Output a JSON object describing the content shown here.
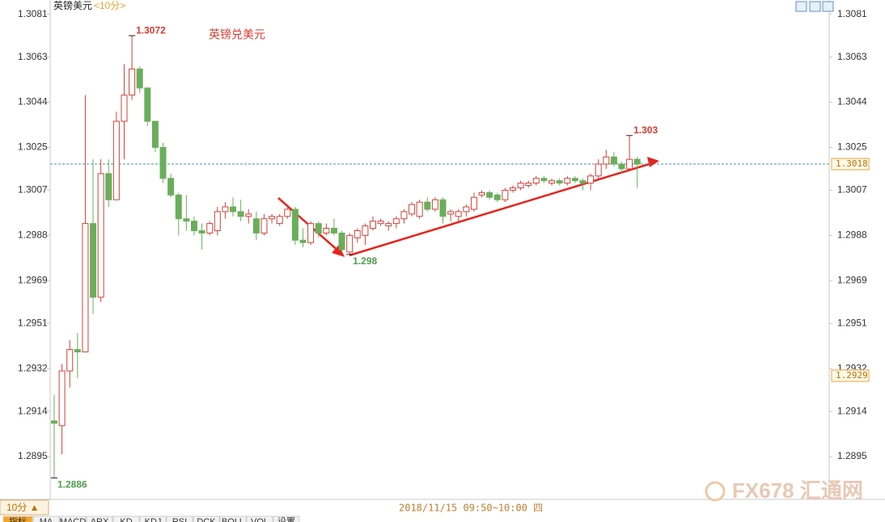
{
  "chart_data": {
    "type": "candlestick",
    "title": "英镑美元",
    "period": "<10分>",
    "annotation": "英镑兑美元",
    "time_label": "2018/11/15 09:50~10:00 四",
    "period_tab": "10分 ▲",
    "tabs": [
      "指标",
      "MA",
      "MACD",
      "ARX",
      "KD",
      "KDJ",
      "RSI",
      "DCK",
      "BOLL",
      "VOL",
      "设置"
    ],
    "watermark": "FX678 汇通网",
    "ylim": [
      1.2877,
      1.3087
    ],
    "yticks": [
      1.3081,
      1.3063,
      1.3044,
      1.3025,
      1.3007,
      1.2988,
      1.2969,
      1.2951,
      1.2932,
      1.2914,
      1.2895
    ],
    "last_price": 1.3018,
    "ref_price": 1.2929,
    "high_labels": [
      1.3072,
      1.303
    ],
    "low_labels": [
      1.298,
      1.2886
    ],
    "up_color": "#d0423a",
    "down_color": "#6aae5c",
    "open": [
      1.291,
      1.2908,
      1.2931,
      1.294,
      1.2939,
      1.2993,
      1.2962,
      1.3014,
      1.3003,
      1.3036,
      1.3047,
      1.3058,
      1.305,
      1.3036,
      1.3025,
      1.3012,
      1.3005,
      1.2995,
      1.2994,
      1.299,
      1.2989,
      1.299,
      1.2998,
      1.3,
      1.2998,
      1.2996,
      1.2995,
      1.2989,
      1.2995,
      1.2993,
      1.2996,
      1.2999,
      1.2986,
      1.2985,
      1.2993,
      1.2989,
      1.2991,
      1.2989,
      1.2981,
      1.2987,
      1.2988,
      1.2991,
      1.2993,
      1.2992,
      1.2993,
      1.2995,
      1.2997,
      1.2996,
      1.3002,
      1.2999,
      1.3003,
      1.2997,
      1.2996,
      1.2998,
      1.2999,
      1.3005,
      1.3006,
      1.3005,
      1.3003,
      1.3007,
      1.3008,
      1.3009,
      1.301,
      1.3012,
      1.301,
      1.3011,
      1.301,
      1.3012,
      1.3011,
      1.301,
      1.3013,
      1.3018,
      1.3021,
      1.3018,
      1.3016,
      1.302
    ],
    "high": [
      1.2921,
      1.2934,
      1.2944,
      1.2947,
      1.3047,
      1.302,
      1.302,
      1.302,
      1.304,
      1.306,
      1.3072,
      1.3059,
      1.305,
      1.3036,
      1.3027,
      1.3014,
      1.3006,
      1.3005,
      1.2996,
      1.2993,
      1.2994,
      1.3,
      1.3002,
      1.3004,
      1.3003,
      1.2999,
      1.2998,
      1.2997,
      1.2997,
      1.2997,
      1.3001,
      1.3,
      1.2991,
      1.2994,
      1.2994,
      1.2993,
      1.2995,
      1.299,
      1.2989,
      1.2991,
      1.2993,
      1.2996,
      1.2995,
      1.2994,
      1.2996,
      1.2999,
      1.3002,
      1.3003,
      1.3004,
      1.3004,
      1.3004,
      1.2999,
      1.2999,
      1.3001,
      1.3006,
      1.3007,
      1.3007,
      1.3006,
      1.3008,
      1.3009,
      1.3011,
      1.3011,
      1.3013,
      1.3013,
      1.3012,
      1.3012,
      1.3013,
      1.3013,
      1.3012,
      1.3014,
      1.302,
      1.3024,
      1.3023,
      1.3019,
      1.303,
      1.3021
    ],
    "low": [
      1.2886,
      1.2896,
      1.2924,
      1.2928,
      1.2939,
      1.2955,
      1.296,
      1.3,
      1.3003,
      1.302,
      1.3045,
      1.3048,
      1.3034,
      1.3023,
      1.301,
      1.3004,
      1.2988,
      1.299,
      1.2988,
      1.2982,
      1.2988,
      1.2988,
      1.2995,
      1.2996,
      1.2994,
      1.2993,
      1.2986,
      1.2988,
      1.2993,
      1.2992,
      1.2995,
      1.2984,
      1.2983,
      1.2984,
      1.2987,
      1.2988,
      1.2988,
      1.2981,
      1.298,
      1.2985,
      1.2984,
      1.299,
      1.2992,
      1.299,
      1.2991,
      1.2993,
      1.2996,
      1.2995,
      1.2998,
      1.2998,
      1.2993,
      1.2994,
      1.2994,
      1.2996,
      1.2998,
      1.3004,
      1.3003,
      1.3002,
      1.3002,
      1.3006,
      1.3007,
      1.3008,
      1.3009,
      1.301,
      1.3009,
      1.3009,
      1.3009,
      1.301,
      1.3007,
      1.3007,
      1.3011,
      1.3016,
      1.3017,
      1.3014,
      1.3015,
      1.3008
    ],
    "close": [
      1.2909,
      1.2931,
      1.294,
      1.2939,
      1.2993,
      1.2962,
      1.3014,
      1.3003,
      1.3036,
      1.3047,
      1.3058,
      1.305,
      1.3036,
      1.3025,
      1.3012,
      1.3005,
      1.2995,
      1.2994,
      1.299,
      1.2989,
      1.2993,
      1.2998,
      1.3,
      1.2998,
      1.2996,
      1.2997,
      1.2989,
      1.2995,
      1.2996,
      1.2996,
      1.2999,
      1.2986,
      1.2985,
      1.2993,
      1.2989,
      1.2991,
      1.2989,
      1.2982,
      1.2988,
      1.299,
      1.2992,
      1.2994,
      1.2994,
      1.2993,
      1.2995,
      1.2998,
      1.3001,
      1.3002,
      1.2999,
      1.3003,
      1.2996,
      1.2998,
      1.2998,
      1.3,
      1.3004,
      1.3006,
      1.3004,
      1.3003,
      1.3007,
      1.3008,
      1.301,
      1.301,
      1.3012,
      1.3011,
      1.3011,
      1.301,
      1.3012,
      1.3011,
      1.301,
      1.3013,
      1.3018,
      1.3021,
      1.3018,
      1.3016,
      1.302,
      1.3018
    ]
  }
}
